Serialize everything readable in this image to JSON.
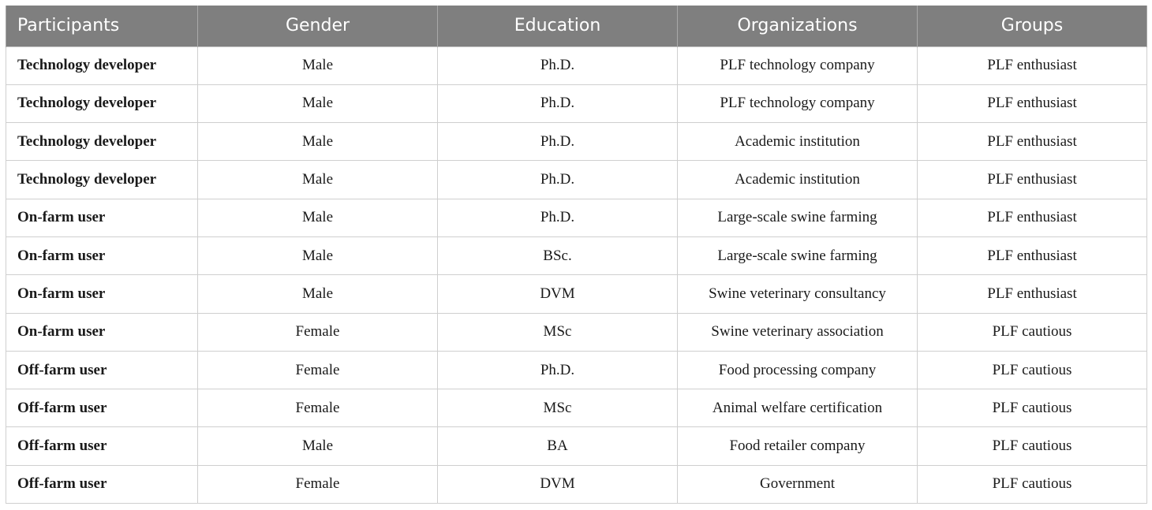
{
  "table": {
    "headers": [
      "Participants",
      "Gender",
      "Education",
      "Organizations",
      "Groups"
    ],
    "rows": [
      [
        "Technology developer",
        "Male",
        "Ph.D.",
        "PLF technology company",
        "PLF enthusiast"
      ],
      [
        "Technology developer",
        "Male",
        "Ph.D.",
        "PLF technology company",
        "PLF enthusiast"
      ],
      [
        "Technology developer",
        "Male",
        "Ph.D.",
        "Academic institution",
        "PLF enthusiast"
      ],
      [
        "Technology developer",
        "Male",
        "Ph.D.",
        "Academic institution",
        "PLF enthusiast"
      ],
      [
        "On-farm user",
        "Male",
        "Ph.D.",
        "Large-scale swine farming",
        "PLF enthusiast"
      ],
      [
        "On-farm user",
        "Male",
        "BSc.",
        "Large-scale swine farming",
        "PLF enthusiast"
      ],
      [
        "On-farm user",
        "Male",
        "DVM",
        "Swine veterinary consultancy",
        "PLF enthusiast"
      ],
      [
        "On-farm user",
        "Female",
        "MSc",
        "Swine veterinary association",
        "PLF cautious"
      ],
      [
        "Off-farm user",
        "Female",
        "Ph.D.",
        "Food processing company",
        "PLF cautious"
      ],
      [
        "Off-farm user",
        "Female",
        "MSc",
        "Animal welfare certification",
        "PLF cautious"
      ],
      [
        "Off-farm user",
        "Male",
        "BA",
        "Food retailer company",
        "PLF cautious"
      ],
      [
        "Off-farm user",
        "Female",
        "DVM",
        "Government",
        "PLF cautious"
      ]
    ]
  }
}
